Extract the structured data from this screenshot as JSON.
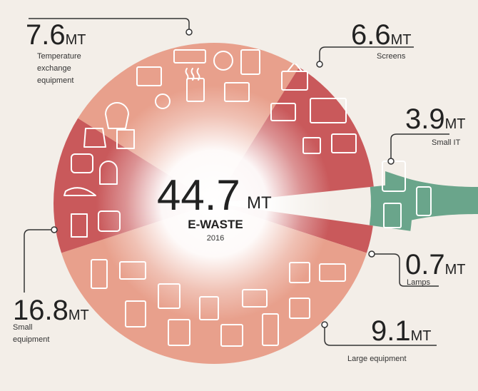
{
  "chart_data": {
    "type": "pie",
    "center": {
      "value": "44.7",
      "unit": "MT",
      "label": "E-WASTE",
      "year": "2016"
    },
    "slices": [
      {
        "category": "Temperature exchange equipment",
        "display_value": "7.6",
        "value": 7.6,
        "unit": "MT",
        "color": "#e8a08c"
      },
      {
        "category": "Screens",
        "display_value": "6.6",
        "value": 6.6,
        "unit": "MT",
        "color": "#c9595b"
      },
      {
        "category": "Small IT",
        "display_value": "3.9",
        "value": 3.9,
        "unit": "MT",
        "color": "#6aa58b"
      },
      {
        "category": "Lamps",
        "display_value": "0.7",
        "value": 0.7,
        "unit": "MT",
        "color": "#c9595b"
      },
      {
        "category": "Large equipment",
        "display_value": "9.1",
        "value": 9.1,
        "unit": "MT",
        "color": "#e8a08c"
      },
      {
        "category": "Small equipment",
        "display_value": "16.8",
        "value": 16.8,
        "unit": "MT",
        "color": "#c9595b"
      }
    ],
    "label_lines": {
      "Temperature exchange equipment": [
        "Temperature",
        "exchange",
        "equipment"
      ],
      "Screens": [
        "Screens"
      ],
      "Small IT": [
        "Small IT"
      ],
      "Lamps": [
        "Lamps"
      ],
      "Large equipment": [
        "Large equipment"
      ],
      "Small equipment": [
        "Small",
        "equipment"
      ]
    }
  }
}
